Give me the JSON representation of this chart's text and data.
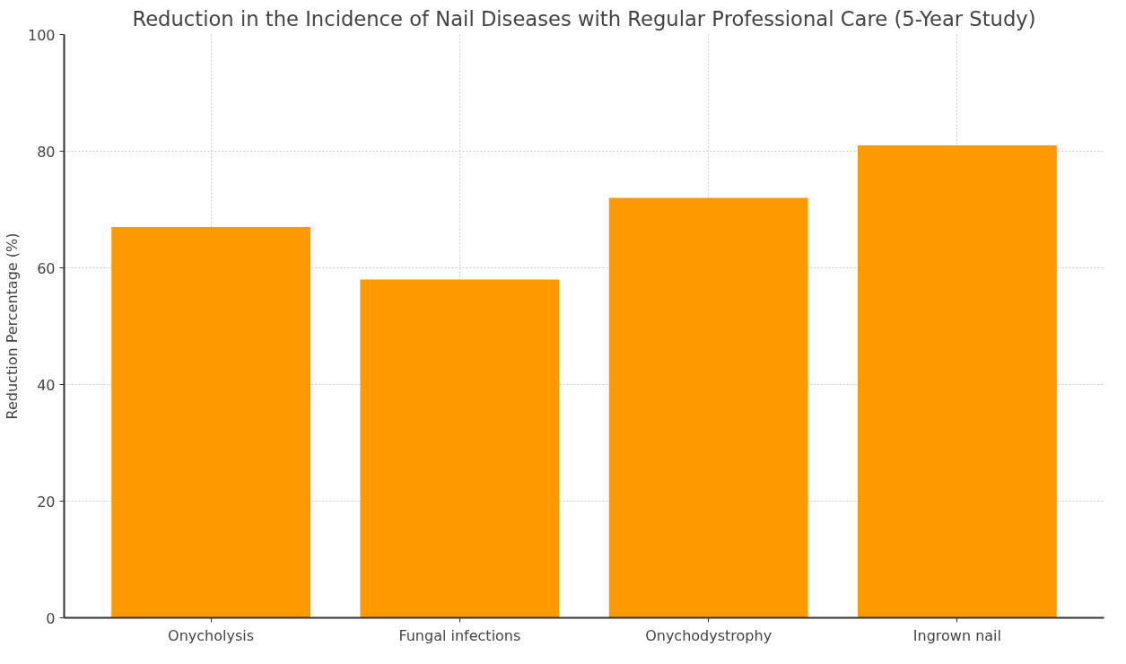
{
  "chart_data": {
    "type": "bar",
    "title": "Reduction in the Incidence of Nail Diseases with Regular Professional Care (5-Year Study)",
    "ylabel": "Reduction Percentage (%)",
    "categories": [
      "Onycholysis",
      "Fungal infections",
      "Onychodystrophy",
      "Ingrown nail"
    ],
    "values": [
      67,
      58,
      72,
      81
    ],
    "color": "#ff9900",
    "ylim": [
      0,
      100
    ],
    "yticks": [
      0,
      20,
      40,
      60,
      80,
      100
    ],
    "grid": true
  }
}
